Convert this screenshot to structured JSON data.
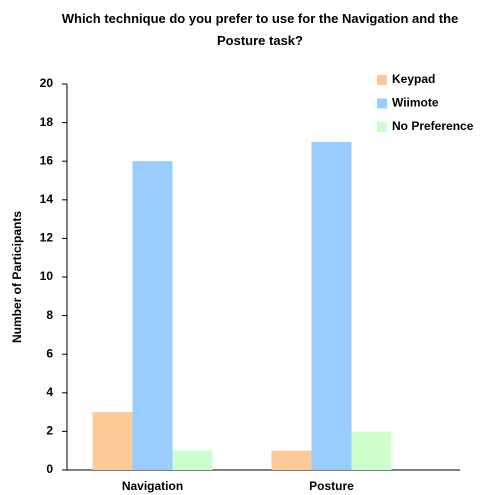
{
  "chart_data": {
    "type": "bar",
    "title": "Which technique do you prefer to use for the Navigation and the Posture task?",
    "y_label": "Number of Participants",
    "categories": [
      "Navigation",
      "Posture"
    ],
    "series": [
      {
        "name": "Keypad",
        "color": "#fcc998",
        "values": [
          3,
          1
        ]
      },
      {
        "name": "Wiimote",
        "color": "#99ccff",
        "values": [
          16,
          17
        ]
      },
      {
        "name": "No Preference",
        "color": "#ccffcc",
        "values": [
          1,
          2
        ]
      }
    ],
    "ylim": [
      0,
      20
    ],
    "yticks": [
      0,
      2,
      4,
      6,
      8,
      10,
      12,
      14,
      16,
      18,
      20
    ],
    "grid": false,
    "legend": "top-right"
  }
}
